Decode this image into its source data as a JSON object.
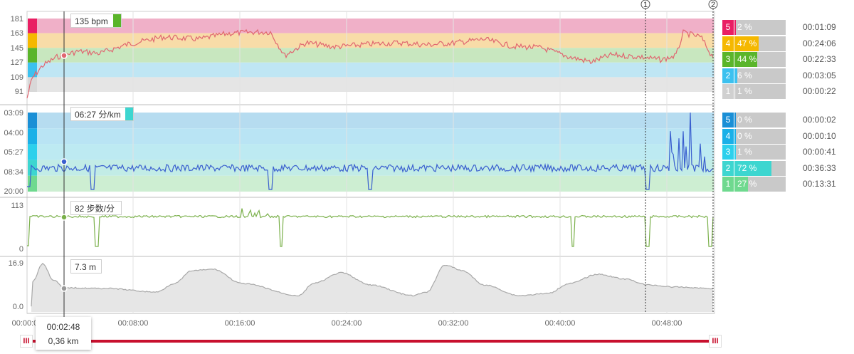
{
  "charts": {
    "heart_rate": {
      "tick_labels": [
        "181",
        "163",
        "145",
        "127",
        "109",
        "91"
      ],
      "zones": [
        {
          "zone": "5",
          "color": "#e91e63",
          "band": "#f0b0c8"
        },
        {
          "zone": "4",
          "color": "#f5b800",
          "band": "#f8dca8"
        },
        {
          "zone": "3",
          "color": "#5ab52a",
          "band": "#c8e7bf"
        },
        {
          "zone": "2",
          "color": "#3cc1ef",
          "band": "#bfe6f4"
        },
        {
          "zone": "1",
          "color": "#d8d8d8",
          "band": "#e5e5e5"
        }
      ],
      "line_color": "#e06670"
    },
    "pace": {
      "tick_labels": [
        "03:09",
        "04:00",
        "05:27",
        "08:34",
        "20:00"
      ],
      "zones": [
        {
          "zone": "5",
          "color": "#1a8fd6",
          "band": "#b6dcf0"
        },
        {
          "zone": "4",
          "color": "#1ab0e8",
          "band": "#b9e4f4"
        },
        {
          "zone": "3",
          "color": "#2cd0ec",
          "band": "#bdeaf2"
        },
        {
          "zone": "2",
          "color": "#3dd6d0",
          "band": "#c2ece6"
        },
        {
          "zone": "1",
          "color": "#6fd98f",
          "band": "#cdeed2"
        }
      ],
      "line_color": "#3a5fcf"
    },
    "cadence": {
      "tick_labels": [
        "113",
        "0"
      ],
      "line_color": "#7ab04a"
    },
    "elevation": {
      "tick_labels": [
        "16.9",
        "0.0"
      ],
      "line_color": "#a8a8a8",
      "fill_color": "#e6e6e6"
    }
  },
  "time_axis": [
    "00:00:00",
    "00:08:00",
    "00:16:00",
    "00:24:00",
    "00:32:00",
    "00:40:00",
    "00:48:00"
  ],
  "laps": [
    "1",
    "2"
  ],
  "tooltips": {
    "heart_rate": "135 bpm",
    "pace": "06:27 分/km",
    "cadence": "82 步数/分",
    "elevation": "7.3 m"
  },
  "cursor": {
    "time": "00:02:48",
    "distance": "0,36 km"
  },
  "hr_zone_summary": [
    {
      "zone": "5",
      "percent": "2 %",
      "time": "00:01:09",
      "fraction": 0.02,
      "color": "#e91e63"
    },
    {
      "zone": "4",
      "percent": "47 %",
      "time": "00:24:06",
      "fraction": 0.47,
      "color": "#f5b800"
    },
    {
      "zone": "3",
      "percent": "44 %",
      "time": "00:22:33",
      "fraction": 0.44,
      "color": "#5ab52a"
    },
    {
      "zone": "2",
      "percent": "6 %",
      "time": "00:03:05",
      "fraction": 0.06,
      "color": "#3cc1ef"
    },
    {
      "zone": "1",
      "percent": "1 %",
      "time": "00:00:22",
      "fraction": 0.01,
      "color": "#d0d0d0"
    }
  ],
  "pace_zone_summary": [
    {
      "zone": "5",
      "percent": "0 %",
      "time": "00:00:02",
      "fraction": 0.0,
      "color": "#1a8fd6"
    },
    {
      "zone": "4",
      "percent": "0 %",
      "time": "00:00:10",
      "fraction": 0.0,
      "color": "#1ab0e8"
    },
    {
      "zone": "3",
      "percent": "1 %",
      "time": "00:00:41",
      "fraction": 0.01,
      "color": "#2cd0ec"
    },
    {
      "zone": "2",
      "percent": "72 %",
      "time": "00:36:33",
      "fraction": 0.72,
      "color": "#3dd6d0"
    },
    {
      "zone": "1",
      "percent": "27 %",
      "time": "00:13:31",
      "fraction": 0.27,
      "color": "#6fd98f"
    }
  ],
  "range_handles": {
    "left": "III",
    "right": "III"
  }
}
